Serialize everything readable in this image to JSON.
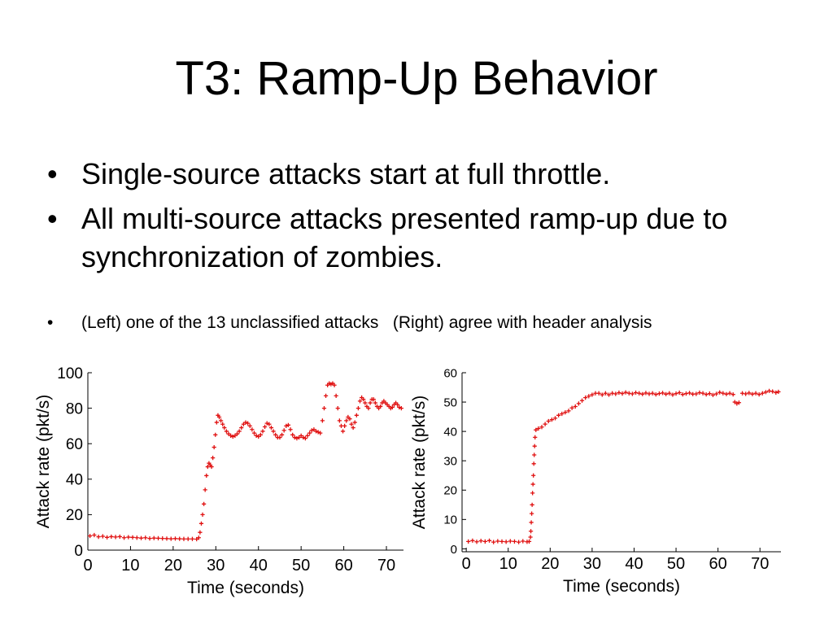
{
  "slide": {
    "title": "T3: Ramp-Up Behavior",
    "bullets": [
      "Single-source attacks start at full throttle.",
      "All multi-source attacks presented ramp-up due to synchronization of zombies."
    ],
    "bullet_glyph": "•",
    "note": "(Left) one of the 13 unclassified attacks   (Right) agree with header analysis"
  },
  "chart_data": [
    {
      "type": "scatter",
      "title": "",
      "xlabel": "Time (seconds)",
      "ylabel": "Attack rate (pkt/s)",
      "xlim": [
        0,
        74
      ],
      "ylim": [
        0,
        100
      ],
      "xticks": [
        0,
        10,
        20,
        30,
        40,
        50,
        60,
        70
      ],
      "yticks": [
        0,
        20,
        40,
        60,
        80,
        100
      ],
      "marker": "+",
      "color": "#e01010",
      "grid": false,
      "points": [
        [
          0.5,
          8
        ],
        [
          1.5,
          8.5
        ],
        [
          2.5,
          7.5
        ],
        [
          3.5,
          7.8
        ],
        [
          4.5,
          7.2
        ],
        [
          5.5,
          7.6
        ],
        [
          6.5,
          7.4
        ],
        [
          7.5,
          7.6
        ],
        [
          8.5,
          7.0
        ],
        [
          9.5,
          7.3
        ],
        [
          10.5,
          7.2
        ],
        [
          11.5,
          7.0
        ],
        [
          12.5,
          6.8
        ],
        [
          13.5,
          7.0
        ],
        [
          14.5,
          6.6
        ],
        [
          15.5,
          6.8
        ],
        [
          16.5,
          6.7
        ],
        [
          17.5,
          6.6
        ],
        [
          18.5,
          6.5
        ],
        [
          19.5,
          6.4
        ],
        [
          20.5,
          6.5
        ],
        [
          21.5,
          6.4
        ],
        [
          22.5,
          6.3
        ],
        [
          23.5,
          6.3
        ],
        [
          24.5,
          6.3
        ],
        [
          25.5,
          6.2
        ],
        [
          26.0,
          7.0
        ],
        [
          26.3,
          10
        ],
        [
          26.6,
          15
        ],
        [
          26.9,
          20
        ],
        [
          27.2,
          26
        ],
        [
          27.5,
          34
        ],
        [
          27.8,
          42
        ],
        [
          28.1,
          47
        ],
        [
          28.4,
          49
        ],
        [
          28.7,
          48
        ],
        [
          29.0,
          47
        ],
        [
          29.3,
          52
        ],
        [
          29.6,
          58
        ],
        [
          29.9,
          65
        ],
        [
          30.2,
          72
        ],
        [
          30.5,
          76
        ],
        [
          30.8,
          75
        ],
        [
          31.2,
          73
        ],
        [
          31.6,
          71
        ],
        [
          32.0,
          69
        ],
        [
          32.5,
          67
        ],
        [
          33.0,
          65.5
        ],
        [
          33.5,
          64.5
        ],
        [
          34.0,
          64
        ],
        [
          34.5,
          64.5
        ],
        [
          35.0,
          65.5
        ],
        [
          35.5,
          67
        ],
        [
          36.0,
          69
        ],
        [
          36.5,
          71
        ],
        [
          37.0,
          72
        ],
        [
          37.5,
          71.5
        ],
        [
          38.0,
          70
        ],
        [
          38.5,
          68
        ],
        [
          39.0,
          66
        ],
        [
          39.5,
          64.5
        ],
        [
          40.0,
          64
        ],
        [
          40.5,
          65
        ],
        [
          41.0,
          67
        ],
        [
          41.5,
          69.5
        ],
        [
          42.0,
          71.5
        ],
        [
          42.5,
          71
        ],
        [
          43.0,
          69
        ],
        [
          43.5,
          67
        ],
        [
          44.0,
          65
        ],
        [
          44.5,
          63.5
        ],
        [
          45.0,
          63.5
        ],
        [
          45.5,
          65
        ],
        [
          46.0,
          67.5
        ],
        [
          46.5,
          70
        ],
        [
          47.0,
          70.5
        ],
        [
          47.5,
          68
        ],
        [
          48.0,
          65
        ],
        [
          48.5,
          63.5
        ],
        [
          49.0,
          63
        ],
        [
          49.5,
          63.5
        ],
        [
          50.0,
          64.5
        ],
        [
          50.5,
          63.5
        ],
        [
          51.0,
          63
        ],
        [
          51.5,
          64.5
        ],
        [
          52.0,
          66
        ],
        [
          52.5,
          67.5
        ],
        [
          53.0,
          68
        ],
        [
          53.5,
          67
        ],
        [
          54.0,
          66.5
        ],
        [
          54.5,
          66
        ],
        [
          55.0,
          73
        ],
        [
          55.4,
          80
        ],
        [
          55.8,
          87
        ],
        [
          56.2,
          93
        ],
        [
          56.6,
          94
        ],
        [
          57.0,
          93.5
        ],
        [
          57.4,
          94
        ],
        [
          57.8,
          93
        ],
        [
          58.2,
          87
        ],
        [
          58.6,
          80
        ],
        [
          59.0,
          73
        ],
        [
          59.4,
          70
        ],
        [
          59.8,
          67
        ],
        [
          60.2,
          70
        ],
        [
          60.6,
          73
        ],
        [
          61.0,
          75
        ],
        [
          61.4,
          74
        ],
        [
          61.8,
          71
        ],
        [
          62.2,
          69
        ],
        [
          62.6,
          72
        ],
        [
          63.0,
          76
        ],
        [
          63.4,
          80
        ],
        [
          63.8,
          84
        ],
        [
          64.2,
          86
        ],
        [
          64.6,
          85
        ],
        [
          65.0,
          83
        ],
        [
          65.4,
          81
        ],
        [
          65.8,
          80
        ],
        [
          66.2,
          83
        ],
        [
          66.6,
          85
        ],
        [
          67.0,
          85
        ],
        [
          67.4,
          83
        ],
        [
          67.8,
          81
        ],
        [
          68.2,
          80
        ],
        [
          68.6,
          81
        ],
        [
          69.0,
          83
        ],
        [
          69.4,
          84
        ],
        [
          69.8,
          83
        ],
        [
          70.2,
          82
        ],
        [
          70.6,
          81
        ],
        [
          71.0,
          80
        ],
        [
          71.4,
          80.5
        ],
        [
          71.8,
          82
        ],
        [
          72.2,
          83
        ],
        [
          72.6,
          82
        ],
        [
          73.0,
          80.5
        ],
        [
          73.5,
          80
        ]
      ]
    },
    {
      "type": "scatter",
      "title": "",
      "xlabel": "Time (seconds)",
      "ylabel": "Attack rate (pkt/s)",
      "xlim": [
        -1,
        75
      ],
      "ylim": [
        -1,
        60
      ],
      "xticks": [
        0,
        10,
        20,
        30,
        40,
        50,
        60,
        70
      ],
      "yticks": [
        0,
        10,
        20,
        30,
        40,
        50,
        60
      ],
      "marker": "+",
      "color": "#e01010",
      "grid": false,
      "points": [
        [
          0.5,
          2.5
        ],
        [
          1.5,
          2.8
        ],
        [
          2.5,
          2.4
        ],
        [
          3.5,
          2.7
        ],
        [
          4.5,
          2.5
        ],
        [
          5.5,
          2.8
        ],
        [
          6.5,
          2.3
        ],
        [
          7.5,
          2.6
        ],
        [
          8.5,
          2.5
        ],
        [
          9.5,
          2.4
        ],
        [
          10.5,
          2.6
        ],
        [
          11.5,
          2.5
        ],
        [
          12.5,
          2.3
        ],
        [
          13.5,
          2.6
        ],
        [
          14.5,
          2.4
        ],
        [
          15.0,
          2.5
        ],
        [
          15.3,
          4
        ],
        [
          15.4,
          6
        ],
        [
          15.5,
          9
        ],
        [
          15.6,
          12
        ],
        [
          15.7,
          15
        ],
        [
          15.8,
          19
        ],
        [
          15.9,
          22
        ],
        [
          16.0,
          25
        ],
        [
          16.1,
          29
        ],
        [
          16.2,
          32
        ],
        [
          16.3,
          35
        ],
        [
          16.4,
          38
        ],
        [
          16.6,
          40.5
        ],
        [
          17.2,
          41
        ],
        [
          18.0,
          41.5
        ],
        [
          18.8,
          42.5
        ],
        [
          19.6,
          43.5
        ],
        [
          20.4,
          44
        ],
        [
          21.2,
          44.5
        ],
        [
          22.0,
          45.5
        ],
        [
          22.8,
          46
        ],
        [
          23.6,
          46.5
        ],
        [
          24.4,
          47
        ],
        [
          25.2,
          48
        ],
        [
          26.0,
          48.5
        ],
        [
          26.8,
          49.5
        ],
        [
          27.6,
          50.5
        ],
        [
          28.4,
          51.5
        ],
        [
          29.2,
          52
        ],
        [
          30.0,
          52.5
        ],
        [
          30.8,
          53
        ],
        [
          31.6,
          53
        ],
        [
          32.4,
          52.5
        ],
        [
          33.2,
          53
        ],
        [
          34.0,
          52.5
        ],
        [
          34.8,
          53
        ],
        [
          35.6,
          52.8
        ],
        [
          36.4,
          53.2
        ],
        [
          37.2,
          52.9
        ],
        [
          38.0,
          53.3
        ],
        [
          38.8,
          53
        ],
        [
          39.6,
          52.8
        ],
        [
          40.4,
          53.2
        ],
        [
          41.2,
          53
        ],
        [
          42.0,
          52.7
        ],
        [
          42.8,
          53.1
        ],
        [
          43.6,
          52.8
        ],
        [
          44.4,
          53
        ],
        [
          45.2,
          52.6
        ],
        [
          46.0,
          52.9
        ],
        [
          46.8,
          53.1
        ],
        [
          47.6,
          52.7
        ],
        [
          48.4,
          53
        ],
        [
          49.2,
          52.5
        ],
        [
          50.0,
          52.9
        ],
        [
          50.8,
          53.2
        ],
        [
          51.6,
          52.6
        ],
        [
          52.4,
          52.9
        ],
        [
          53.2,
          53.1
        ],
        [
          54.0,
          52.7
        ],
        [
          54.8,
          52.8
        ],
        [
          55.6,
          53.2
        ],
        [
          56.4,
          53
        ],
        [
          57.2,
          52.6
        ],
        [
          58.0,
          52.9
        ],
        [
          58.8,
          52.4
        ],
        [
          59.6,
          52.8
        ],
        [
          60.4,
          53.3
        ],
        [
          61.2,
          53
        ],
        [
          62.0,
          52.7
        ],
        [
          62.8,
          53
        ],
        [
          63.6,
          52.6
        ],
        [
          64.0,
          50
        ],
        [
          64.5,
          49.5
        ],
        [
          65.0,
          49.8
        ],
        [
          65.8,
          53
        ],
        [
          66.6,
          52.8
        ],
        [
          67.4,
          53.1
        ],
        [
          68.2,
          52.7
        ],
        [
          69.0,
          53
        ],
        [
          69.8,
          52.6
        ],
        [
          70.6,
          53
        ],
        [
          71.4,
          53.4
        ],
        [
          72.2,
          53.8
        ],
        [
          73.0,
          53.6
        ],
        [
          73.8,
          53.2
        ],
        [
          74.4,
          53.5
        ]
      ]
    }
  ]
}
